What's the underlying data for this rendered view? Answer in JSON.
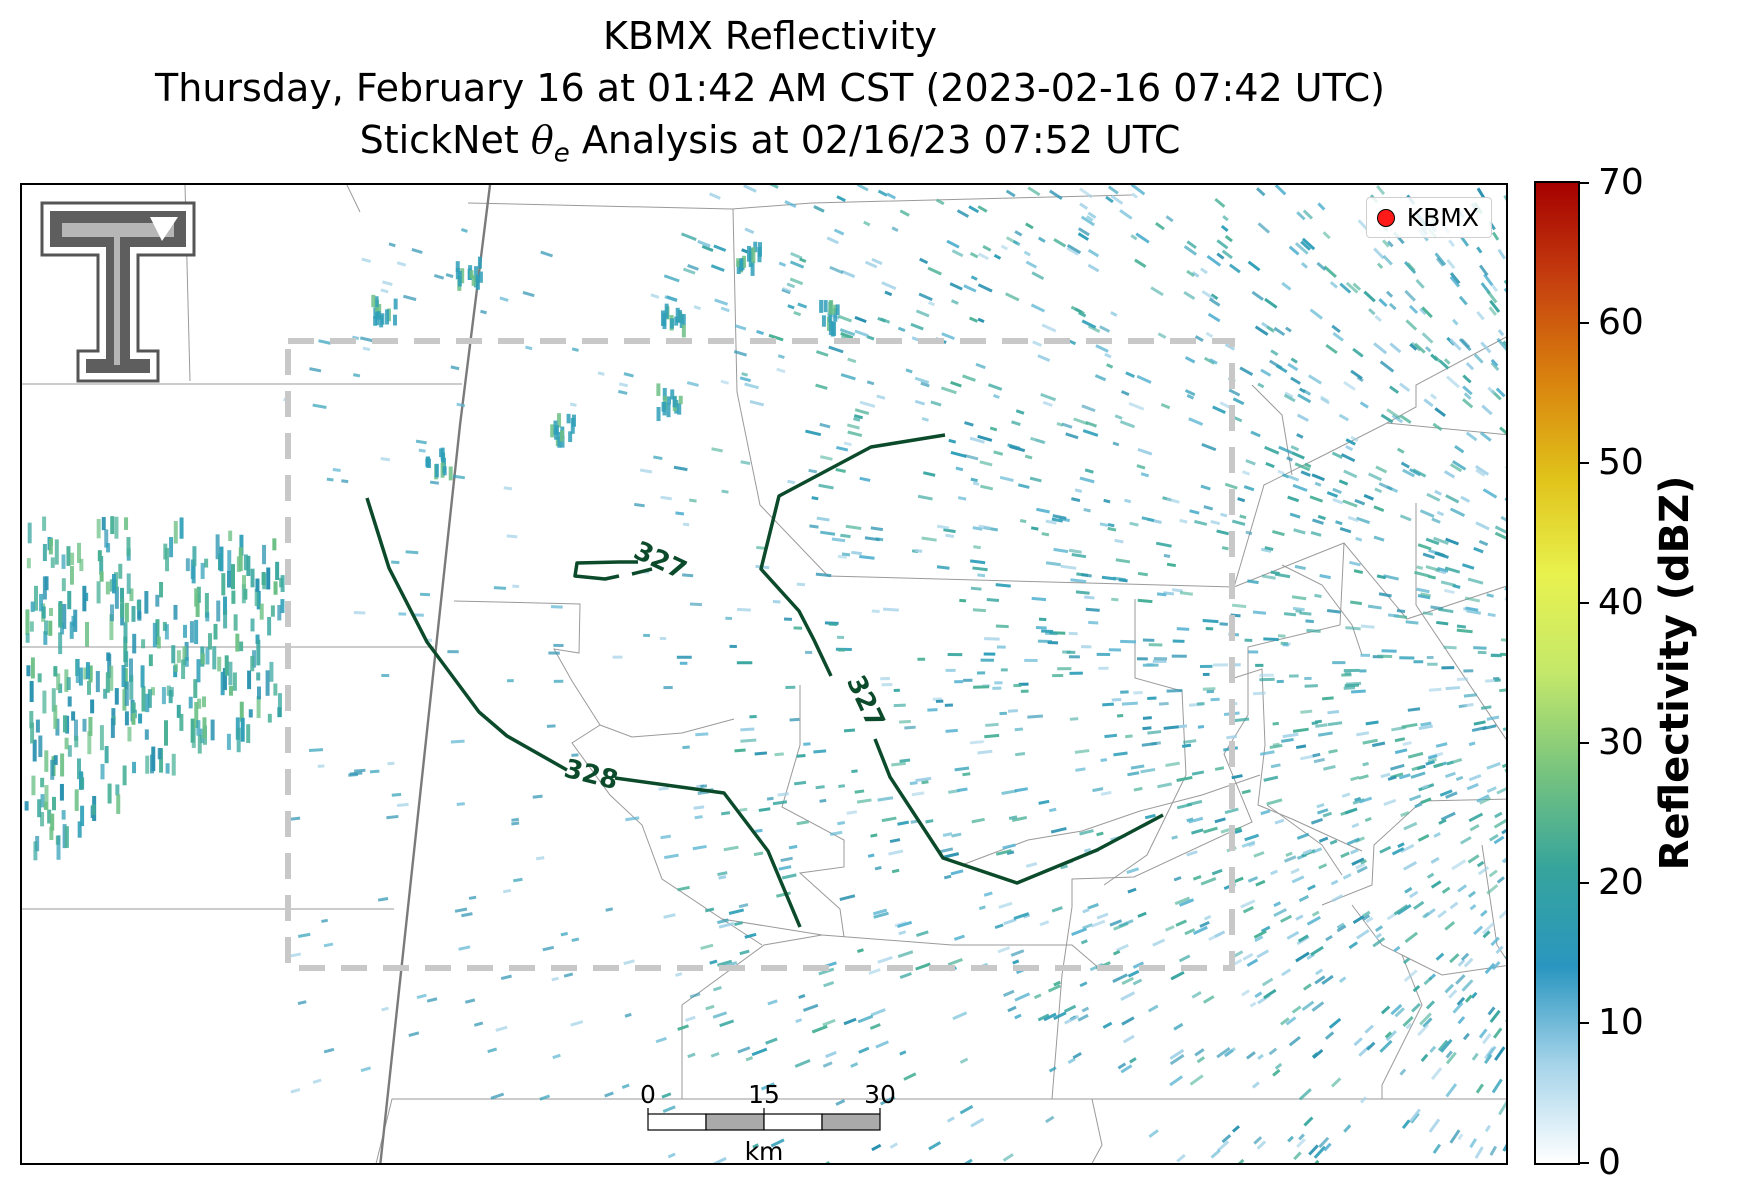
{
  "title": {
    "line1": "KBMX Reflectivity",
    "line2": "Thursday, February 16 at 01:42 AM CST (2023-02-16 07:42 UTC)",
    "line3_prefix": "StickNet ",
    "line3_symbol": "θ",
    "line3_sub": "e",
    "line3_suffix": " Analysis at 02/16/23 07:52 UTC"
  },
  "legend": {
    "label": "KBMX",
    "marker_color": "#ff1a1a"
  },
  "colorbar": {
    "label": "Reflectivity (dBZ)",
    "ticks": [
      "0",
      "10",
      "20",
      "30",
      "40",
      "50",
      "60",
      "70"
    ],
    "range": [
      0,
      70
    ],
    "colors": [
      "#ffffff",
      "#a6d4ea",
      "#2a96c0",
      "#36a49c",
      "#78c47e",
      "#c4e86a",
      "#e8f24e",
      "#e0c21a",
      "#d9820e",
      "#c6400f",
      "#a50000"
    ]
  },
  "contours": [
    {
      "label": "327",
      "color": "#0b4a2a"
    },
    {
      "label": "327",
      "color": "#0b4a2a"
    },
    {
      "label": "328",
      "color": "#0b4a2a"
    }
  ],
  "scalebar": {
    "ticks": [
      "0",
      "15",
      "30"
    ],
    "unit": "km"
  },
  "logo": {
    "name": "Texas Tech double-T"
  },
  "colors": {
    "echo_light": "#8ec8e0",
    "echo_mid": "#2f9fb8",
    "echo_teal": "#3aa7a0",
    "echo_green": "#6cc085",
    "analysis_box": "#c8c8c8",
    "boundaries": "#9a9a9a"
  }
}
